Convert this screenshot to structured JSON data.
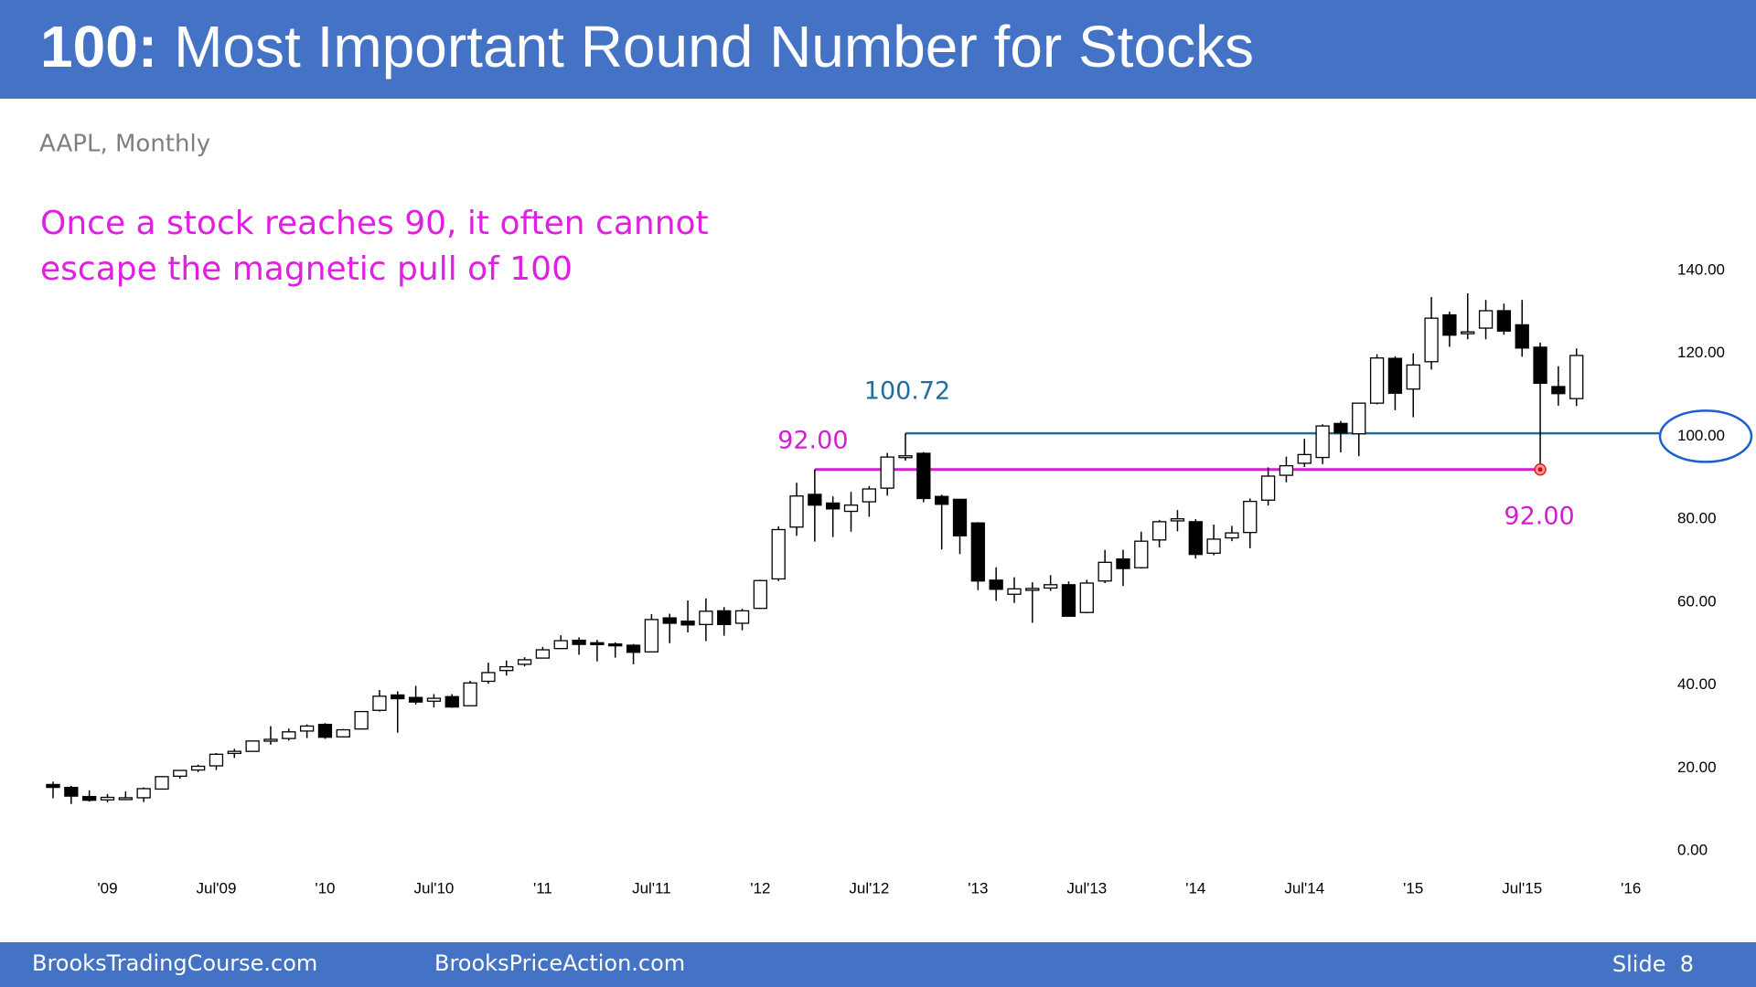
{
  "header": {
    "title_lead": "100:",
    "title": "Most Important Round Number for Stocks"
  },
  "chart_data": {
    "type": "candlestick",
    "subtitle": "AAPL, Monthly",
    "annotation": [
      "Once a stock reaches 90, it often cannot",
      "escape the magnetic pull of 100"
    ],
    "categories": [
      null,
      null,
      null,
      "'09",
      null,
      null,
      null,
      null,
      null,
      "Jul'09",
      null,
      null,
      null,
      null,
      null,
      "'10",
      null,
      null,
      null,
      null,
      null,
      "Jul'10",
      null,
      null,
      null,
      null,
      null,
      "'11",
      null,
      null,
      null,
      null,
      null,
      "Jul'11",
      null,
      null,
      null,
      null,
      null,
      "'12",
      null,
      null,
      null,
      null,
      null,
      "Jul'12",
      null,
      null,
      null,
      null,
      null,
      "'13",
      null,
      null,
      null,
      null,
      null,
      "Jul'13",
      null,
      null,
      null,
      null,
      null,
      "'14",
      null,
      null,
      null,
      null,
      null,
      "Jul'14",
      null,
      null,
      null,
      null,
      null,
      "'15",
      null,
      null,
      null,
      null,
      null,
      "Jul'15",
      null,
      null,
      null,
      null,
      null,
      "'16"
    ],
    "open": [
      16.0,
      15.3,
      13.1,
      12.3,
      12.8,
      12.8,
      14.9,
      18.0,
      19.5,
      20.5,
      23.5,
      24.0,
      26.6,
      27.1,
      28.9,
      30.5,
      27.5,
      29.4,
      33.9,
      37.6,
      37.0,
      36.1,
      37.2,
      35.0,
      40.9,
      43.5,
      45.0,
      46.5,
      48.8,
      50.8,
      50.2,
      49.9,
      49.6,
      48.0,
      56.2,
      55.4,
      54.6,
      57.9,
      54.9,
      58.5,
      65.6,
      78.1,
      86.0,
      83.9,
      81.9,
      84.2,
      87.5,
      95.0,
      95.9,
      85.5,
      84.8,
      79.1,
      65.3,
      61.9,
      63.1,
      63.4,
      64.2,
      57.5,
      65.1,
      70.4,
      68.3,
      75.0,
      79.6,
      79.4,
      71.8,
      75.5,
      76.8,
      84.6,
      90.6,
      93.5,
      94.9,
      103.1,
      100.6,
      108.0,
      118.8,
      111.4,
      118.0,
      129.3,
      124.8,
      126.1,
      130.3,
      126.9,
      121.5,
      112.0,
      109.1,
      null,
      null,
      null
    ],
    "high": [
      16.7,
      15.7,
      14.6,
      13.7,
      14.3,
      15.3,
      18.0,
      19.4,
      20.8,
      23.6,
      24.6,
      26.6,
      30.1,
      29.5,
      30.5,
      30.8,
      29.4,
      33.7,
      38.8,
      38.5,
      39.8,
      37.8,
      37.8,
      41.0,
      45.4,
      45.9,
      46.7,
      49.2,
      52.0,
      51.5,
      50.9,
      50.3,
      49.9,
      57.1,
      57.2,
      60.4,
      60.9,
      58.8,
      58.4,
      65.4,
      78.3,
      88.8,
      92.0,
      85.5,
      86.6,
      88.0,
      96.0,
      100.72,
      96.2,
      85.9,
      84.9,
      79.3,
      68.4,
      66.0,
      64.8,
      66.5,
      65.0,
      65.4,
      72.6,
      72.6,
      77.0,
      79.8,
      82.2,
      80.0,
      78.7,
      78.4,
      85.0,
      92.5,
      95.1,
      99.4,
      102.9,
      103.7,
      108.0,
      119.8,
      119.3,
      120.0,
      133.6,
      130.1,
      134.5,
      132.9,
      132.0,
      132.9,
      122.6,
      116.9,
      121.2,
      null,
      null,
      null
    ],
    "low": [
      12.7,
      11.3,
      11.9,
      11.7,
      12.6,
      11.8,
      14.8,
      17.4,
      19.0,
      19.5,
      22.4,
      23.9,
      25.6,
      26.6,
      27.2,
      27.0,
      27.4,
      29.3,
      33.6,
      28.5,
      35.3,
      34.6,
      34.5,
      35.0,
      40.3,
      42.3,
      44.5,
      46.4,
      48.7,
      47.3,
      45.7,
      46.6,
      45.0,
      48.0,
      50.1,
      52.7,
      50.6,
      51.9,
      53.2,
      58.4,
      65.1,
      76.0,
      74.6,
      75.7,
      77.0,
      80.6,
      85.7,
      94.1,
      84.1,
      72.7,
      71.6,
      62.9,
      60.3,
      59.8,
      55.0,
      62.7,
      56.5,
      57.3,
      64.6,
      63.9,
      68.1,
      73.2,
      77.1,
      70.5,
      71.3,
      74.7,
      73.0,
      83.3,
      88.9,
      92.6,
      93.3,
      96.1,
      95.2,
      107.7,
      106.3,
      104.6,
      116.1,
      121.6,
      123.4,
      123.4,
      124.5,
      119.2,
      92.0,
      107.4,
      107.3,
      null,
      null,
      null
    ],
    "close": [
      15.3,
      13.2,
      12.2,
      12.9,
      12.8,
      15.0,
      17.9,
      19.4,
      20.4,
      23.3,
      24.0,
      26.5,
      26.9,
      28.7,
      30.1,
      27.4,
      29.2,
      33.6,
      37.3,
      36.7,
      35.9,
      36.8,
      34.7,
      40.5,
      43.0,
      44.4,
      46.1,
      48.5,
      50.7,
      49.8,
      50.0,
      49.7,
      47.9,
      55.8,
      54.9,
      54.5,
      57.8,
      54.6,
      57.9,
      65.2,
      77.5,
      85.6,
      83.4,
      82.5,
      83.4,
      87.3,
      95.0,
      95.3,
      85.0,
      83.6,
      76.0,
      65.1,
      63.1,
      63.2,
      63.3,
      64.2,
      56.6,
      64.6,
      69.6,
      68.1,
      74.7,
      79.4,
      80.1,
      71.5,
      75.2,
      76.7,
      84.3,
      90.4,
      92.9,
      95.6,
      102.5,
      100.8,
      108.0,
      118.9,
      110.4,
      117.2,
      128.5,
      124.4,
      125.2,
      130.3,
      125.4,
      121.3,
      112.8,
      110.3,
      119.5,
      null,
      null,
      null
    ],
    "up_color": "#ffffff",
    "down_color": "#000000",
    "ylim": [
      0,
      140
    ],
    "yticks": [
      {
        "value": 0,
        "label": "0.00"
      },
      {
        "value": 20,
        "label": "20.00"
      },
      {
        "value": 40,
        "label": "40.00"
      },
      {
        "value": 60,
        "label": "60.00"
      },
      {
        "value": 80,
        "label": "80.00"
      },
      {
        "value": 100,
        "label": "100.00"
      },
      {
        "value": 120,
        "label": "120.00"
      },
      {
        "value": 140,
        "label": "140.00"
      }
    ],
    "resistance": {
      "value": 100.72,
      "color": "#1f6f9e"
    },
    "support": {
      "value": 92,
      "value_labels": [
        "92.00",
        "92.00"
      ],
      "color": "#d21ed2"
    }
  },
  "footer": {
    "left": "BrooksTradingCourse.com",
    "middle": "BrooksPriceAction.com",
    "slide": "Slide  8"
  }
}
